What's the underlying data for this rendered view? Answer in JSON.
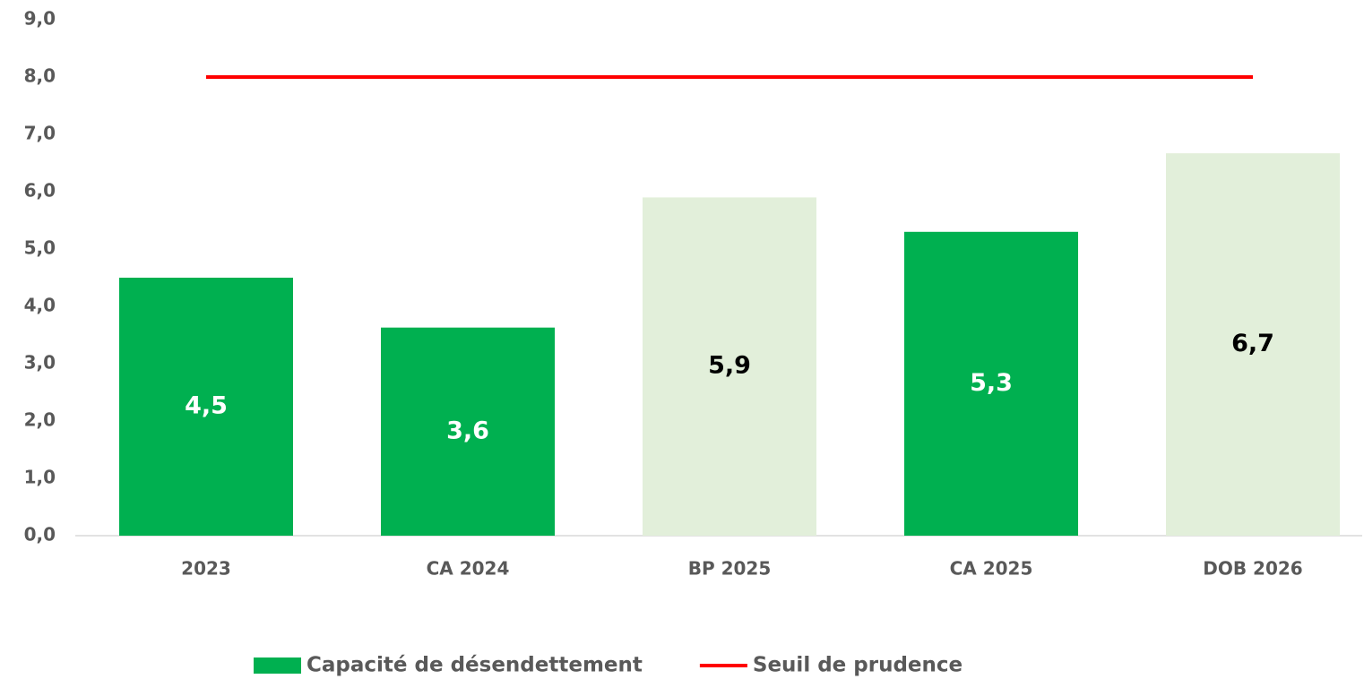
{
  "chart_data": {
    "type": "bar",
    "categories": [
      "2023",
      "CA 2024",
      "BP 2025",
      "CA 2025",
      "DOB 2026"
    ],
    "series": [
      {
        "name": "Capacité de désendettement",
        "type": "bar",
        "color": "#00b050",
        "colors": [
          "#00b050",
          "#00b050",
          "#e2efda",
          "#00b050",
          "#e2efda"
        ],
        "values": [
          4.5,
          3.63,
          5.9,
          5.3,
          6.67
        ],
        "value_labels": [
          "4,5",
          "3,6",
          "5,9",
          "5,3",
          "6,7"
        ],
        "value_label_colors": [
          "#ffffff",
          "#ffffff",
          "#000000",
          "#ffffff",
          "#000000"
        ]
      },
      {
        "name": "Seuil de prudence",
        "type": "line",
        "color": "#ff0000",
        "values": [
          8,
          8,
          8,
          8,
          8
        ]
      }
    ],
    "ylim": [
      0,
      9
    ],
    "yticks": [
      {
        "value": 0,
        "label": "0,0"
      },
      {
        "value": 1,
        "label": "1,0"
      },
      {
        "value": 2,
        "label": "2,0"
      },
      {
        "value": 3,
        "label": "3,0"
      },
      {
        "value": 4,
        "label": "4,0"
      },
      {
        "value": 5,
        "label": "5,0"
      },
      {
        "value": 6,
        "label": "6,0"
      },
      {
        "value": 7,
        "label": "7,0"
      },
      {
        "value": 8,
        "label": "8,0"
      },
      {
        "value": 9,
        "label": "9,0"
      }
    ],
    "legend": "bottom"
  }
}
